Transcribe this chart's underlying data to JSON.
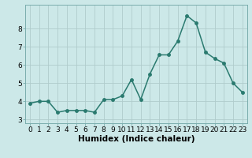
{
  "x": [
    0,
    1,
    2,
    3,
    4,
    5,
    6,
    7,
    8,
    9,
    10,
    11,
    12,
    13,
    14,
    15,
    16,
    17,
    18,
    19,
    20,
    21,
    22,
    23
  ],
  "y": [
    3.9,
    4.0,
    4.0,
    3.4,
    3.5,
    3.5,
    3.5,
    3.4,
    4.1,
    4.1,
    4.3,
    5.2,
    4.1,
    5.5,
    6.55,
    6.55,
    7.3,
    8.7,
    8.3,
    6.7,
    6.35,
    6.1,
    5.0,
    4.5
  ],
  "line_color": "#2a7a6f",
  "marker": "o",
  "markersize": 2.5,
  "linewidth": 1.1,
  "xlabel": "Humidex (Indice chaleur)",
  "bg_color": "#cce8e8",
  "grid_color": "#b0cccc",
  "ylim": [
    2.8,
    9.3
  ],
  "xlim": [
    -0.5,
    23.5
  ],
  "yticks": [
    3,
    4,
    5,
    6,
    7,
    8
  ],
  "xticks": [
    0,
    1,
    2,
    3,
    4,
    5,
    6,
    7,
    8,
    9,
    10,
    11,
    12,
    13,
    14,
    15,
    16,
    17,
    18,
    19,
    20,
    21,
    22,
    23
  ],
  "xlabel_fontsize": 7.5,
  "tick_fontsize": 6.5
}
